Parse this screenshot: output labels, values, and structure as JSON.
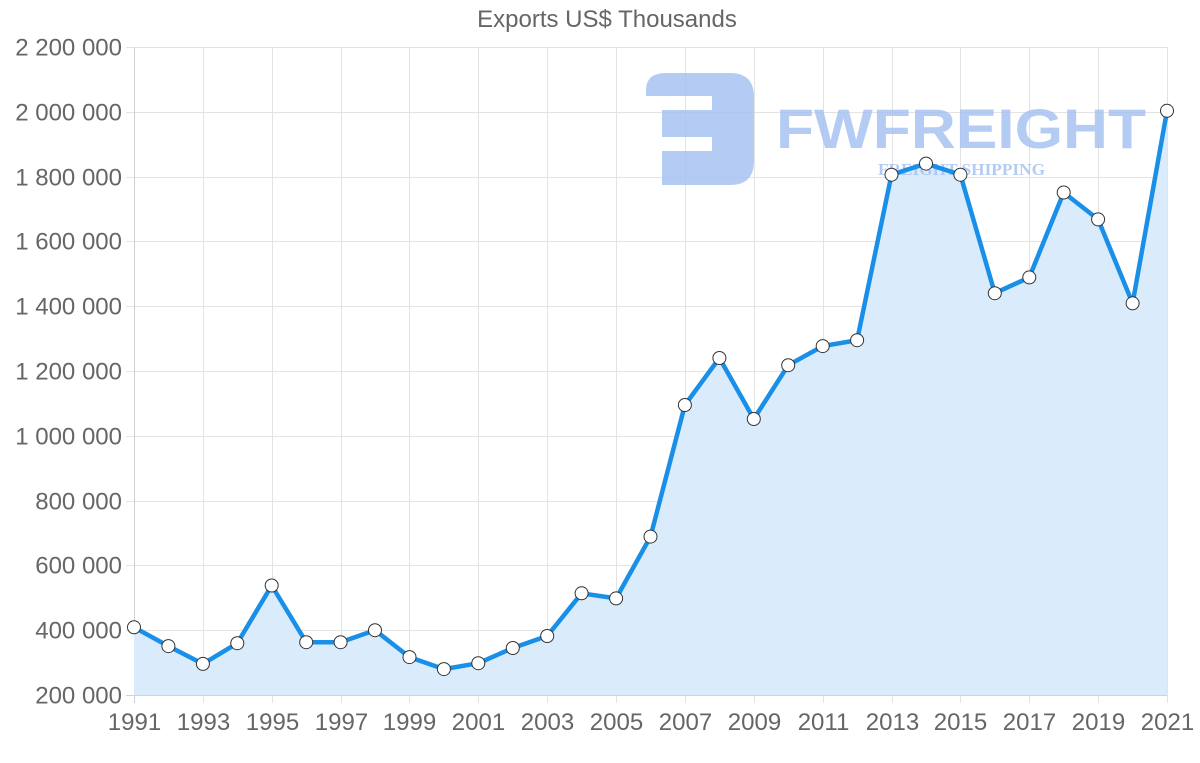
{
  "chart_data": {
    "type": "line",
    "title": "Exports US$ Thousands",
    "xlabel": "",
    "ylabel": "",
    "filled_area": true,
    "grid": true,
    "legend": "none",
    "ylim": [
      200000,
      2200000
    ],
    "y_ticks": [
      200000,
      400000,
      600000,
      800000,
      1000000,
      1200000,
      1400000,
      1600000,
      1800000,
      2000000,
      2200000
    ],
    "y_tick_labels": [
      "200 000",
      "400 000",
      "600 000",
      "800 000",
      "1 000 000",
      "1 200 000",
      "1 400 000",
      "1 600 000",
      "1 800 000",
      "2 000 000",
      "2 200 000"
    ],
    "x_tick_labels": [
      "1991",
      "1993",
      "1995",
      "1997",
      "1999",
      "2001",
      "2003",
      "2005",
      "2007",
      "2009",
      "2011",
      "2013",
      "2015",
      "2017",
      "2019",
      "2021"
    ],
    "categories": [
      "1991",
      "1992",
      "1993",
      "1994",
      "1995",
      "1996",
      "1997",
      "1998",
      "1999",
      "2000",
      "2001",
      "2002",
      "2003",
      "2004",
      "2005",
      "2006",
      "2007",
      "2008",
      "2009",
      "2010",
      "2011",
      "2012",
      "2013",
      "2014",
      "2015",
      "2016",
      "2017",
      "2018",
      "2019",
      "2020",
      "2021"
    ],
    "series": [
      {
        "name": "Exports US$ Thousands",
        "color": "#1a8fe8",
        "fill_color": "#d8ebfb",
        "values": [
          409000,
          351000,
          296000,
          360000,
          538000,
          363000,
          363000,
          400000,
          317000,
          280000,
          298000,
          345000,
          382000,
          514000,
          498000,
          689000,
          1095000,
          1240000,
          1052000,
          1218000,
          1277000,
          1295000,
          1806000,
          1840000,
          1806000,
          1440000,
          1489000,
          1751000,
          1668000,
          1409000,
          2003000
        ]
      }
    ]
  },
  "watermark": {
    "brand": "FWFREIGHT",
    "tagline": "FREIGHT SHIPPING",
    "color": "#a7c3f2"
  }
}
